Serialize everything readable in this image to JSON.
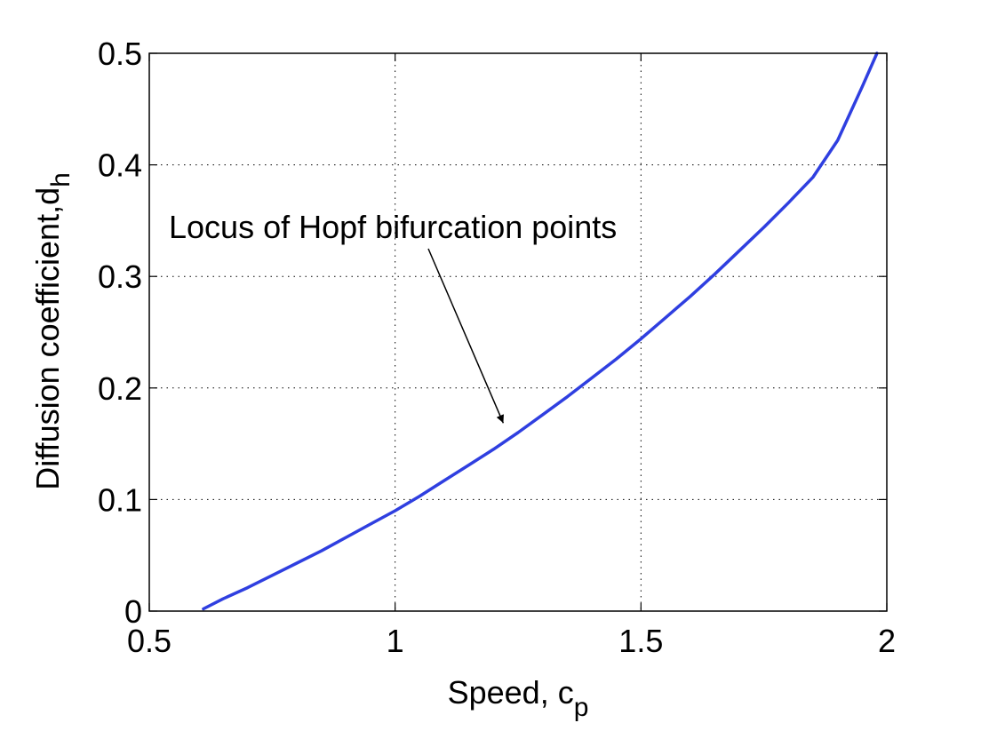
{
  "chart_data": {
    "type": "line",
    "xlabel": "Speed, c",
    "xlabel_sub": "p",
    "ylabel": "Diffusion coefficient,d",
    "ylabel_sub": "h",
    "xlim": [
      0.5,
      2
    ],
    "ylim": [
      0,
      0.5
    ],
    "xticks": [
      0.5,
      1,
      1.5,
      2
    ],
    "xtick_labels": [
      "0.5",
      "1",
      "1.5",
      "2"
    ],
    "yticks": [
      0,
      0.1,
      0.2,
      0.3,
      0.4,
      0.5
    ],
    "ytick_labels": [
      "0",
      "0.1",
      "0.2",
      "0.3",
      "0.4",
      "0.5"
    ],
    "grid": true,
    "series": [
      {
        "color": "#2f3fe0",
        "x": [
          0.61,
          0.65,
          0.7,
          0.75,
          0.8,
          0.85,
          0.9,
          0.95,
          1.0,
          1.05,
          1.1,
          1.15,
          1.2,
          1.25,
          1.3,
          1.35,
          1.4,
          1.45,
          1.5,
          1.55,
          1.6,
          1.65,
          1.7,
          1.75,
          1.8,
          1.85,
          1.9,
          1.95,
          1.98
        ],
        "y": [
          0.002,
          0.011,
          0.021,
          0.032,
          0.043,
          0.054,
          0.066,
          0.078,
          0.09,
          0.103,
          0.117,
          0.131,
          0.145,
          0.16,
          0.176,
          0.192,
          0.209,
          0.226,
          0.244,
          0.263,
          0.282,
          0.302,
          0.323,
          0.344,
          0.366,
          0.389,
          0.422,
          0.47,
          0.5
        ]
      }
    ],
    "annotation": {
      "text": "Locus of Hopf bifurcation points",
      "arrow_to": [
        1.22,
        0.163
      ]
    }
  }
}
